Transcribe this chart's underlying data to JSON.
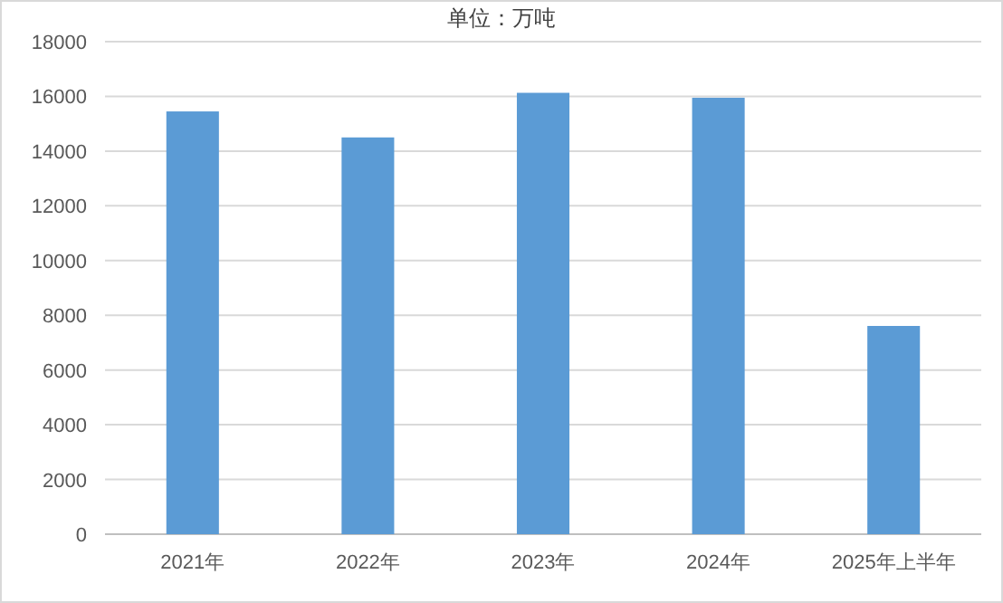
{
  "chart_data": {
    "type": "bar",
    "title": "单位：万吨",
    "categories": [
      "2021年",
      "2022年",
      "2023年",
      "2024年",
      "2025年上半年"
    ],
    "values": [
      15450,
      14500,
      16130,
      15950,
      7610
    ],
    "color": "#5b9bd5",
    "ylim": [
      0,
      18000
    ],
    "yticks": [
      0,
      2000,
      4000,
      6000,
      8000,
      10000,
      12000,
      14000,
      16000,
      18000
    ],
    "grid": "y"
  }
}
